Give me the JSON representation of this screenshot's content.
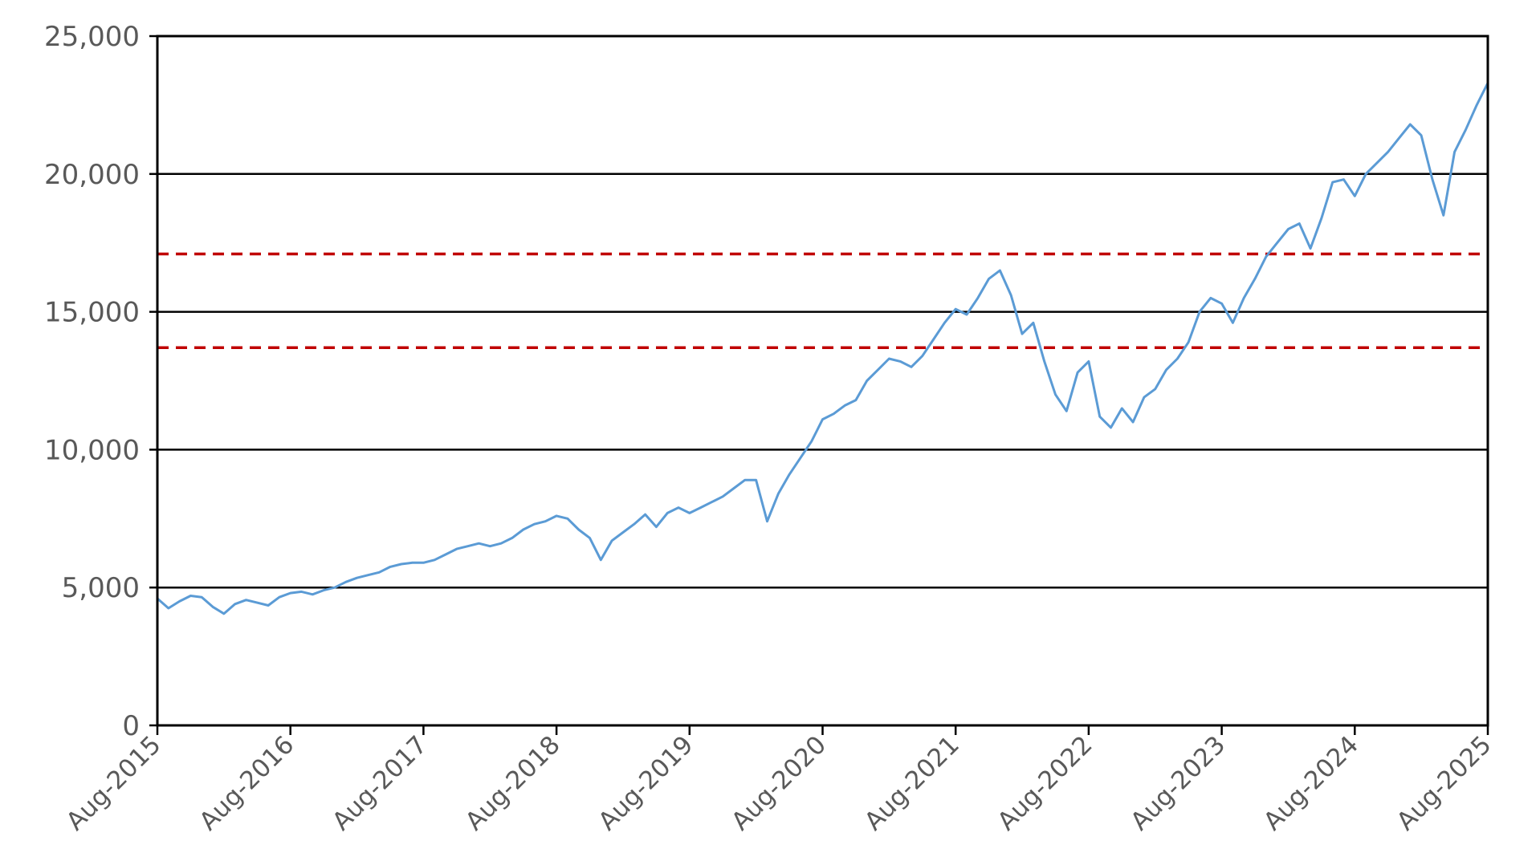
{
  "chart_data": {
    "type": "line",
    "title": "",
    "xlabel": "",
    "ylabel": "",
    "ylim": [
      0,
      25000
    ],
    "xlim": [
      "2015-08",
      "2025-08"
    ],
    "grid": "horizontal",
    "y_ticks": [
      {
        "value": 0,
        "label": "0"
      },
      {
        "value": 5000,
        "label": "5,000"
      },
      {
        "value": 10000,
        "label": "10,000"
      },
      {
        "value": 15000,
        "label": "15,000"
      },
      {
        "value": 20000,
        "label": "20,000"
      },
      {
        "value": 25000,
        "label": "25,000"
      }
    ],
    "x_ticks": [
      {
        "date": "2015-08",
        "label": "Aug-2015"
      },
      {
        "date": "2016-08",
        "label": "Aug-2016"
      },
      {
        "date": "2017-08",
        "label": "Aug-2017"
      },
      {
        "date": "2018-08",
        "label": "Aug-2018"
      },
      {
        "date": "2019-08",
        "label": "Aug-2019"
      },
      {
        "date": "2020-08",
        "label": "Aug-2020"
      },
      {
        "date": "2021-08",
        "label": "Aug-2021"
      },
      {
        "date": "2022-08",
        "label": "Aug-2022"
      },
      {
        "date": "2023-08",
        "label": "Aug-2023"
      },
      {
        "date": "2024-08",
        "label": "Aug-2024"
      },
      {
        "date": "2025-08",
        "label": "Aug-2025"
      }
    ],
    "reference_lines": [
      {
        "value": 17100,
        "color": "#c00000",
        "style": "dashed"
      },
      {
        "value": 13700,
        "color": "#c00000",
        "style": "dashed"
      }
    ],
    "series": [
      {
        "color": "#5b9bd5",
        "x": [
          "2015-08",
          "2015-09",
          "2015-10",
          "2015-11",
          "2015-12",
          "2016-01",
          "2016-02",
          "2016-03",
          "2016-04",
          "2016-05",
          "2016-06",
          "2016-07",
          "2016-08",
          "2016-09",
          "2016-10",
          "2016-11",
          "2016-12",
          "2017-01",
          "2017-02",
          "2017-03",
          "2017-04",
          "2017-05",
          "2017-06",
          "2017-07",
          "2017-08",
          "2017-09",
          "2017-10",
          "2017-11",
          "2017-12",
          "2018-01",
          "2018-02",
          "2018-03",
          "2018-04",
          "2018-05",
          "2018-06",
          "2018-07",
          "2018-08",
          "2018-09",
          "2018-10",
          "2018-11",
          "2018-12",
          "2019-01",
          "2019-02",
          "2019-03",
          "2019-04",
          "2019-05",
          "2019-06",
          "2019-07",
          "2019-08",
          "2019-09",
          "2019-10",
          "2019-11",
          "2019-12",
          "2020-01",
          "2020-02",
          "2020-03",
          "2020-04",
          "2020-05",
          "2020-06",
          "2020-07",
          "2020-08",
          "2020-09",
          "2020-10",
          "2020-11",
          "2020-12",
          "2021-01",
          "2021-02",
          "2021-03",
          "2021-04",
          "2021-05",
          "2021-06",
          "2021-07",
          "2021-08",
          "2021-09",
          "2021-10",
          "2021-11",
          "2021-12",
          "2022-01",
          "2022-02",
          "2022-03",
          "2022-04",
          "2022-05",
          "2022-06",
          "2022-07",
          "2022-08",
          "2022-09",
          "2022-10",
          "2022-11",
          "2022-12",
          "2023-01",
          "2023-02",
          "2023-03",
          "2023-04",
          "2023-05",
          "2023-06",
          "2023-07",
          "2023-08",
          "2023-09",
          "2023-10",
          "2023-11",
          "2023-12",
          "2024-01",
          "2024-02",
          "2024-03",
          "2024-04",
          "2024-05",
          "2024-06",
          "2024-07",
          "2024-08",
          "2024-09",
          "2024-10",
          "2024-11",
          "2024-12",
          "2025-01",
          "2025-02",
          "2025-03",
          "2025-04",
          "2025-05",
          "2025-06",
          "2025-07",
          "2025-08"
        ],
        "values": [
          4600,
          4250,
          4500,
          4700,
          4650,
          4300,
          4050,
          4400,
          4550,
          4450,
          4350,
          4650,
          4800,
          4850,
          4750,
          4900,
          5000,
          5200,
          5350,
          5450,
          5550,
          5750,
          5850,
          5900,
          5900,
          6000,
          6200,
          6400,
          6500,
          6600,
          6500,
          6600,
          6800,
          7100,
          7300,
          7400,
          7600,
          7500,
          7100,
          6800,
          6000,
          6700,
          7000,
          7300,
          7650,
          7200,
          7700,
          7900,
          7700,
          7900,
          8100,
          8300,
          8600,
          8900,
          8900,
          7400,
          8400,
          9100,
          9700,
          10300,
          11100,
          11300,
          11600,
          11800,
          12500,
          12900,
          13300,
          13200,
          13000,
          13400,
          14000,
          14600,
          15100,
          14900,
          15500,
          16200,
          16500,
          15600,
          14200,
          14600,
          13200,
          12000,
          11400,
          12800,
          13200,
          11200,
          10800,
          11500,
          11000,
          11900,
          12200,
          12900,
          13300,
          13900,
          15000,
          15500,
          15300,
          14600,
          15500,
          16200,
          17000,
          17500,
          18000,
          18200,
          17300,
          18400,
          19700,
          19800,
          19200,
          20000,
          20400,
          20800,
          21300,
          21800,
          21400,
          19800,
          18500,
          20800,
          21600,
          22500,
          23300
        ]
      }
    ]
  }
}
